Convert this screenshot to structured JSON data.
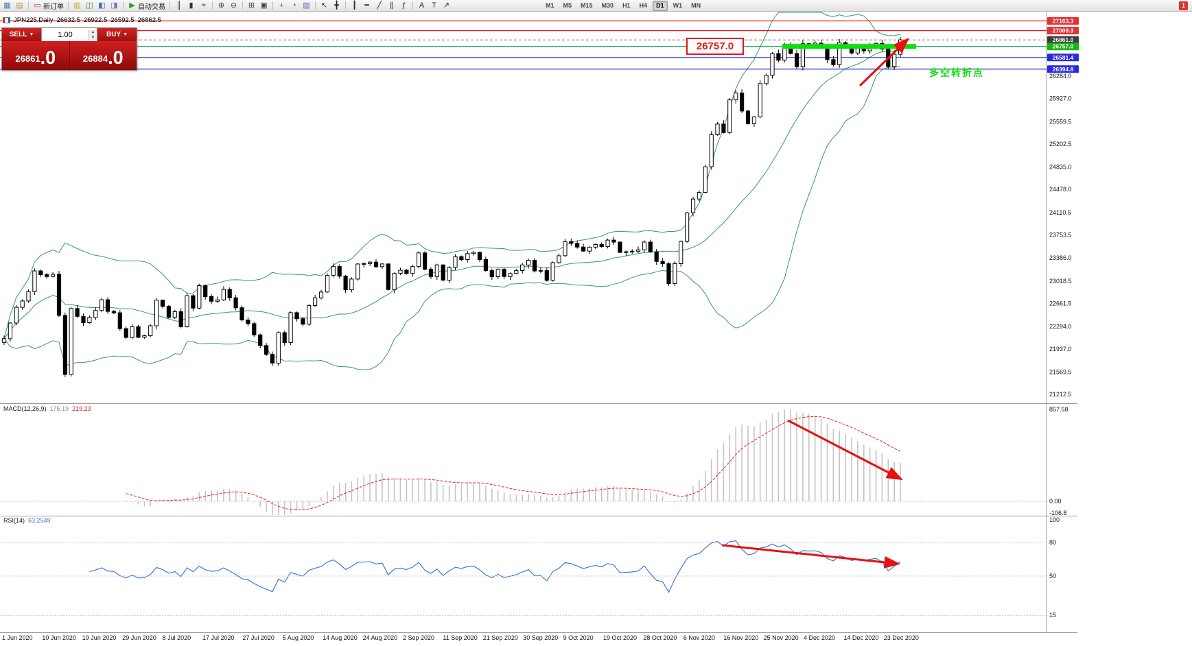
{
  "window": {
    "badge": "1"
  },
  "toolbar": {
    "groups": [
      {
        "items": [
          {
            "name": "new-chart",
            "glyph": "▦",
            "color": "#4a7ab5"
          },
          {
            "name": "chart-profiles",
            "glyph": "▤",
            "color": "#b5934a"
          }
        ]
      },
      {
        "items": [
          {
            "name": "new-order",
            "glyph": "▭",
            "color": "#c03333",
            "label": "新订单"
          }
        ]
      },
      {
        "items": [
          {
            "name": "market-watch",
            "glyph": "▥",
            "color": "#c8a520"
          },
          {
            "name": "data-window",
            "glyph": "◫",
            "color": "#3a8a3a"
          },
          {
            "name": "navigator",
            "glyph": "◧",
            "color": "#3a6ab5"
          },
          {
            "name": "terminal",
            "glyph": "◨",
            "color": "#8a6ab5"
          }
        ]
      },
      {
        "items": [
          {
            "name": "auto-trading",
            "glyph": "▶",
            "color": "#1fa51f",
            "label": "自动交易"
          }
        ]
      },
      {
        "items": [
          {
            "name": "bar-chart",
            "glyph": "║",
            "color": "#333333"
          },
          {
            "name": "candlestick-chart",
            "glyph": "▮",
            "color": "#333333"
          },
          {
            "name": "line-chart",
            "glyph": "≈",
            "color": "#333333"
          }
        ]
      },
      {
        "items": [
          {
            "name": "zoom-in",
            "glyph": "⊕",
            "color": "#444444"
          },
          {
            "name": "zoom-out",
            "glyph": "⊖",
            "color": "#444444"
          }
        ]
      },
      {
        "items": [
          {
            "name": "tile-windows",
            "glyph": "⊞",
            "color": "#444444"
          },
          {
            "name": "cascade-windows",
            "glyph": "▣",
            "color": "#444444"
          }
        ]
      },
      {
        "items": [
          {
            "name": "indicators-add",
            "glyph": "+",
            "color": "#1fa51f"
          },
          {
            "name": "periods",
            "glyph": "◔",
            "color": "#444444"
          },
          {
            "name": "templates",
            "glyph": "▨",
            "color": "#7a5ab5"
          }
        ]
      },
      {
        "items": [
          {
            "name": "cursor",
            "glyph": "↖",
            "color": "#222222"
          },
          {
            "name": "crosshair",
            "glyph": "╋",
            "color": "#222222"
          }
        ]
      },
      {
        "items": [
          {
            "name": "vertical-line",
            "glyph": "┃",
            "color": "#222222"
          },
          {
            "name": "horizontal-line",
            "glyph": "━",
            "color": "#222222"
          },
          {
            "name": "trendline",
            "glyph": "╱",
            "color": "#222222"
          },
          {
            "name": "equidistant-channel",
            "glyph": "∥",
            "color": "#222222"
          },
          {
            "name": "fibonacci",
            "glyph": "ƒ",
            "color": "#222222"
          }
        ]
      },
      {
        "items": [
          {
            "name": "text",
            "glyph": "A",
            "color": "#222222"
          },
          {
            "name": "text-label",
            "glyph": "T",
            "color": "#222222"
          },
          {
            "name": "arrows-tool",
            "glyph": "↗",
            "color": "#222222"
          }
        ]
      }
    ],
    "timeframes": [
      "M1",
      "M5",
      "M15",
      "M30",
      "H1",
      "H4",
      "D1",
      "W1",
      "MN"
    ],
    "active_timeframe": "D1"
  },
  "chart_header": {
    "title": "JPN225,Daily",
    "open": "26632.5",
    "high": "26922.5",
    "low": "26592.5",
    "close": "26862.5"
  },
  "one_click": {
    "sell_label": "SELL",
    "buy_label": "BUY",
    "volume": "1.00",
    "sell_price_base": "26861",
    "sell_price_big": ".0",
    "buy_price_base": "26884",
    "buy_price_big": ".0"
  },
  "annotations": {
    "price_callout": "26757.0",
    "turning_point_text": "多空转折点"
  },
  "indicators": {
    "macd": {
      "label": "MACD(12,26,9)",
      "main_value": "175.19",
      "signal_value": "219.23",
      "axis": [
        "857.58",
        "0.00",
        "-106.8"
      ]
    },
    "rsi": {
      "label": "RSI(14)",
      "value": "63.2549",
      "axis": [
        "100",
        "80",
        "50",
        "15"
      ]
    }
  },
  "price_axis": {
    "chips": [
      {
        "label": "27163.3",
        "price": 27163.3,
        "color": "#e03333"
      },
      {
        "label": "27009.3",
        "price": 27009.3,
        "color": "#e03333"
      },
      {
        "label": "26861.0",
        "price": 26861.0,
        "color": "#3c3c3c"
      },
      {
        "label": "26757.0",
        "price": 26757.0,
        "color": "#18b418"
      },
      {
        "label": "26581.4",
        "price": 26581.4,
        "color": "#2a2ae0"
      },
      {
        "label": "26394.8",
        "price": 26394.8,
        "color": "#2a2ae0"
      }
    ],
    "ticks": [
      {
        "label": "26284.0",
        "price": 26284.0
      },
      {
        "label": "25927.0",
        "price": 25927.0
      },
      {
        "label": "25559.5",
        "price": 25559.5
      },
      {
        "label": "25202.5",
        "price": 25202.5
      },
      {
        "label": "24835.0",
        "price": 24835.0
      },
      {
        "label": "24478.0",
        "price": 24478.0
      },
      {
        "label": "24110.5",
        "price": 24110.5
      },
      {
        "label": "23753.5",
        "price": 23753.5
      },
      {
        "label": "23386.0",
        "price": 23386.0
      },
      {
        "label": "23018.5",
        "price": 23018.5
      },
      {
        "label": "22661.5",
        "price": 22661.5
      },
      {
        "label": "22294.0",
        "price": 22294.0
      },
      {
        "label": "21937.0",
        "price": 21937.0
      },
      {
        "label": "21569.5",
        "price": 21569.5
      },
      {
        "label": "21212.5",
        "price": 21212.5
      }
    ]
  },
  "time_axis": [
    "1 Jun 2020",
    "10 Jun 2020",
    "19 Jun 2020",
    "29 Jun 2020",
    "8 Jul 2020",
    "17 Jul 2020",
    "27 Jul 2020",
    "5 Aug 2020",
    "14 Aug 2020",
    "24 Aug 2020",
    "2 Sep 2020",
    "11 Sep 2020",
    "21 Sep 2020",
    "30 Sep 2020",
    "9 Oct 2020",
    "19 Oct 2020",
    "28 Oct 2020",
    "6 Nov 2020",
    "16 Nov 2020",
    "25 Nov 2020",
    "4 Dec 2020",
    "14 Dec 2020",
    "23 Dec 2020"
  ],
  "chart_data": {
    "type": "candlestick",
    "symbol": "JPN225",
    "timeframe": "Daily",
    "y_range": [
      21071,
      27311
    ],
    "bollinger": {
      "period": 20,
      "deviation": 2,
      "color": "#2f9e5a"
    },
    "macd_params": [
      12,
      26,
      9
    ],
    "rsi_period": 14,
    "levels": {
      "red": [
        27163.3,
        27009.3
      ],
      "green": 26757.0,
      "blue": [
        26581.4,
        26394.8
      ],
      "current_dashed": 26861.0
    },
    "closes": [
      22100,
      22350,
      22600,
      22700,
      22850,
      23180,
      23120,
      23090,
      23125,
      22470,
      21530,
      22580,
      22455,
      22355,
      22437,
      22549,
      22720,
      22534,
      22512,
      22260,
      22120,
      22290,
      22122,
      22146,
      22306,
      22714,
      22615,
      22439,
      22530,
      22291,
      22785,
      22587,
      22945,
      22770,
      22696,
      22718,
      22884,
      22751,
      22593,
      22397,
      22339,
      22160,
      21990,
      21850,
      21710,
      22195,
      22037,
      22515,
      22418,
      22330,
      22630,
      22750,
      22843,
      23110,
      23250,
      23096,
      22880,
      23050,
      23289,
      23296,
      23320,
      23247,
      23290,
      22882,
      23140,
      23190,
      23138,
      23250,
      23466,
      23205,
      23090,
      23275,
      23032,
      23235,
      23406,
      23360,
      23455,
      23475,
      23360,
      23185,
      23087,
      23205,
      23090,
      23139,
      23185,
      23275,
      23350,
      23180,
      23185,
      23030,
      23312,
      23422,
      23647,
      23620,
      23560,
      23495,
      23558,
      23601,
      23567,
      23671,
      23639,
      23474,
      23485,
      23494,
      23516,
      23639,
      23485,
      23331,
      23295,
      22977,
      23295,
      23650,
      24105,
      24325,
      24430,
      24839,
      25349,
      25520,
      25385,
      25906,
      26014,
      25728,
      25527,
      25634,
      26165,
      26296,
      26644,
      26537,
      26787,
      26644,
      26433,
      26800,
      26787,
      26809,
      26751,
      26547,
      26467,
      26817,
      26756,
      26652,
      26732,
      26687,
      26757,
      26806,
      26714,
      26436,
      26633,
      26862
    ]
  }
}
